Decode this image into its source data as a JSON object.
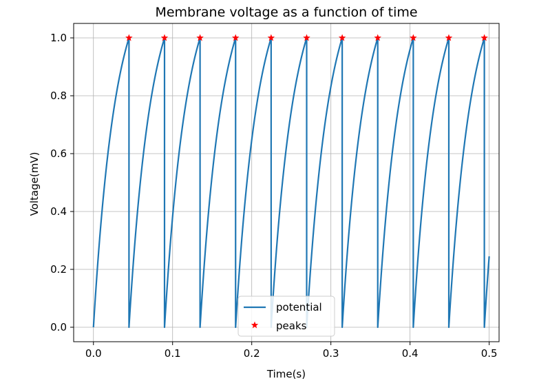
{
  "chart_data": {
    "type": "line",
    "title": "Membrane voltage as a function of time",
    "xlabel": "Time(s)",
    "ylabel": "Voltage(mV)",
    "xlim": [
      -0.025,
      0.5125
    ],
    "ylim": [
      -0.05,
      1.05
    ],
    "x_ticks": [
      0.0,
      0.1,
      0.2,
      0.3,
      0.4,
      0.5
    ],
    "x_tick_labels": [
      "0.0",
      "0.1",
      "0.2",
      "0.3",
      "0.4",
      "0.5"
    ],
    "y_ticks": [
      0.0,
      0.2,
      0.4,
      0.6,
      0.8,
      1.0
    ],
    "y_tick_labels": [
      "0.0",
      "0.2",
      "0.4",
      "0.6",
      "0.8",
      "1.0"
    ],
    "grid": true,
    "legend_position": "bottom-center",
    "series": [
      {
        "name": "potential",
        "color": "#1f77b4",
        "kind": "line",
        "description_model": "exponential rise 1 - exp(-t_local/tau) from 0 up to threshold 1.0, then reset to 0",
        "reset_times": [
          0.0,
          0.0449,
          0.0898,
          0.1347,
          0.1796,
          0.2245,
          0.2694,
          0.3143,
          0.3592,
          0.4041,
          0.449,
          0.4939
        ],
        "threshold": 1.0,
        "end_time": 0.5,
        "end_value": 0.2
      },
      {
        "name": "peaks",
        "color": "#ff0000",
        "kind": "scatter",
        "marker": "star",
        "x": [
          0.0449,
          0.0898,
          0.1347,
          0.1796,
          0.2245,
          0.2694,
          0.3143,
          0.3592,
          0.4041,
          0.449,
          0.4939
        ],
        "y": [
          1.0,
          1.0,
          1.0,
          1.0,
          1.0,
          1.0,
          1.0,
          1.0,
          1.0,
          1.0,
          1.0
        ]
      }
    ]
  }
}
